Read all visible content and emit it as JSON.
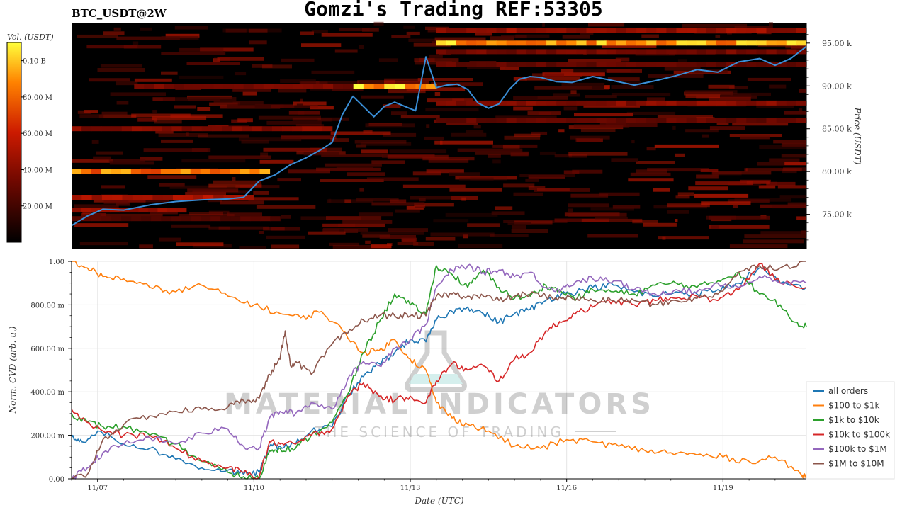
{
  "header": {
    "title": "Gomzi's Trading REF:53305",
    "symbol": "BTC_USDT@2W"
  },
  "colors": {
    "heatmap_low": "#000000",
    "heatmap_mid": "#cc1a00",
    "heatmap_high": "#ffff33",
    "price_line": "#3a8fd8"
  },
  "watermark": {
    "brand": "MATERIAL INDICATORS",
    "tagline": "THE SCIENCE OF TRADING"
  },
  "chart_data": [
    {
      "type": "heatmap",
      "title": "",
      "ylabel": "Price (USDT)",
      "colorbar_label": "Vol. (USDT)",
      "colorbar_ticks": [
        "20.00 M",
        "40.00 M",
        "60.00 M",
        "80.00 M",
        "0.10 B"
      ],
      "colorbar_range": [
        0,
        110000000
      ],
      "ylim": [
        71000,
        97300
      ],
      "ytick_labels": [
        "75.00 k",
        "80.00 k",
        "85.00 k",
        "90.00 k",
        "95.00 k"
      ],
      "ytick_values": [
        75000,
        80000,
        85000,
        90000,
        95000
      ],
      "xlim": [
        0,
        14.1
      ],
      "price_series": {
        "x": [
          0,
          0.3,
          0.6,
          1.0,
          1.5,
          2.0,
          2.5,
          3.0,
          3.3,
          3.6,
          3.9,
          4.2,
          4.5,
          4.8,
          5.0,
          5.2,
          5.4,
          5.6,
          5.8,
          6.0,
          6.2,
          6.4,
          6.6,
          6.8,
          7.0,
          7.2,
          7.4,
          7.6,
          7.8,
          8.0,
          8.2,
          8.4,
          8.6,
          8.8,
          9.0,
          9.3,
          9.6,
          10.0,
          10.4,
          10.8,
          11.2,
          11.6,
          12.0,
          12.4,
          12.8,
          13.2,
          13.5,
          13.8,
          14.1
        ],
        "y": [
          73700,
          74800,
          75600,
          75500,
          76100,
          76500,
          76700,
          76800,
          77000,
          78900,
          79600,
          80800,
          81600,
          82600,
          83400,
          86700,
          88800,
          87600,
          86400,
          87600,
          88100,
          87600,
          87100,
          93400,
          89800,
          90100,
          90200,
          89600,
          88000,
          87400,
          87900,
          89600,
          90800,
          91100,
          91000,
          90500,
          90400,
          91100,
          90600,
          90100,
          90600,
          91200,
          91900,
          91600,
          92800,
          93200,
          92400,
          93200,
          94600
        ]
      },
      "liquidity_bands": [
        {
          "price": 95000,
          "start": 7.0,
          "end": 14.1,
          "volume": 95000000
        },
        {
          "price": 96500,
          "start": 7.0,
          "end": 14.1,
          "volume": 45000000
        },
        {
          "price": 94000,
          "start": 7.0,
          "end": 14.1,
          "volume": 35000000
        },
        {
          "price": 89900,
          "start": 5.4,
          "end": 7.0,
          "volume": 100000000
        },
        {
          "price": 89900,
          "start": 1.2,
          "end": 5.4,
          "volume": 35000000
        },
        {
          "price": 80000,
          "start": 0,
          "end": 3.8,
          "volume": 85000000
        },
        {
          "price": 85000,
          "start": 0,
          "end": 5.0,
          "volume": 40000000
        },
        {
          "price": 88000,
          "start": 7.0,
          "end": 14.1,
          "volume": 40000000
        },
        {
          "price": 86000,
          "start": 7.0,
          "end": 14.1,
          "volume": 30000000
        },
        {
          "price": 77000,
          "start": 0,
          "end": 3.5,
          "volume": 50000000
        },
        {
          "price": 75500,
          "start": 0,
          "end": 2.2,
          "volume": 45000000
        },
        {
          "price": 74500,
          "start": 0,
          "end": 4.0,
          "volume": 25000000
        },
        {
          "price": 92500,
          "start": 7.0,
          "end": 14.1,
          "volume": 30000000
        }
      ]
    },
    {
      "type": "line",
      "title": "",
      "xlabel": "Date (UTC)",
      "ylabel": "Norm. CVD (arb. u.)",
      "ylim": [
        0,
        1
      ],
      "xlim": [
        0,
        14.1
      ],
      "ytick_labels": [
        "0.00",
        "200.00 m",
        "400.00 m",
        "600.00 m",
        "800.00 m",
        "1.00"
      ],
      "ytick_values": [
        0,
        0.2,
        0.4,
        0.6,
        0.8,
        1.0
      ],
      "xtick_labels": [
        "11/07",
        "11/10",
        "11/13",
        "11/16",
        "11/19"
      ],
      "xtick_values": [
        0.5,
        3.5,
        6.5,
        9.5,
        12.5
      ],
      "legend_position": "bottom-right",
      "series": [
        {
          "name": "all orders",
          "color": "#1f77b4",
          "x": [
            0,
            0.2,
            0.5,
            1.0,
            1.5,
            2.0,
            2.5,
            3.0,
            3.3,
            3.6,
            3.8,
            4.0,
            4.3,
            4.6,
            5.0,
            5.3,
            5.6,
            5.9,
            6.2,
            6.5,
            6.8,
            7.0,
            7.3,
            7.6,
            7.9,
            8.2,
            8.5,
            8.8,
            9.1,
            9.4,
            9.7,
            10.0,
            10.4,
            10.8,
            11.2,
            11.6,
            12.0,
            12.4,
            12.8,
            13.2,
            13.6,
            14.1
          ],
          "y": [
            0.19,
            0.17,
            0.22,
            0.16,
            0.14,
            0.09,
            0.05,
            0.04,
            0.02,
            0.03,
            0.15,
            0.15,
            0.16,
            0.22,
            0.24,
            0.38,
            0.47,
            0.53,
            0.58,
            0.64,
            0.63,
            0.73,
            0.77,
            0.79,
            0.76,
            0.72,
            0.76,
            0.78,
            0.82,
            0.85,
            0.86,
            0.88,
            0.89,
            0.86,
            0.84,
            0.86,
            0.85,
            0.87,
            0.9,
            0.97,
            0.9,
            0.88
          ]
        },
        {
          "name": "$100 to $1k",
          "color": "#ff7f0e",
          "x": [
            0,
            0.3,
            0.6,
            1.0,
            1.5,
            2.0,
            2.5,
            3.0,
            3.5,
            4.0,
            4.4,
            4.8,
            5.2,
            5.6,
            5.9,
            6.2,
            6.5,
            6.8,
            7.0,
            7.3,
            7.6,
            8.0,
            8.5,
            9.0,
            9.5,
            10.0,
            10.5,
            11.0,
            11.5,
            12.0,
            12.5,
            13.0,
            13.5,
            14.0,
            14.1
          ],
          "y": [
            1.0,
            0.97,
            0.93,
            0.92,
            0.88,
            0.86,
            0.89,
            0.84,
            0.8,
            0.76,
            0.74,
            0.77,
            0.68,
            0.58,
            0.59,
            0.64,
            0.55,
            0.5,
            0.35,
            0.28,
            0.25,
            0.22,
            0.15,
            0.14,
            0.18,
            0.17,
            0.15,
            0.13,
            0.12,
            0.11,
            0.1,
            0.08,
            0.1,
            0.02,
            0.01
          ]
        },
        {
          "name": "$1k to $10k",
          "color": "#2ca02c",
          "x": [
            0,
            0.3,
            0.6,
            1.0,
            1.5,
            2.0,
            2.5,
            3.0,
            3.3,
            3.6,
            3.8,
            4.0,
            4.3,
            4.6,
            5.0,
            5.3,
            5.6,
            5.9,
            6.2,
            6.5,
            6.8,
            7.0,
            7.3,
            7.6,
            7.9,
            8.2,
            8.5,
            8.8,
            9.1,
            9.4,
            9.7,
            10.0,
            10.4,
            10.8,
            11.2,
            11.6,
            12.0,
            12.4,
            12.8,
            13.2,
            13.6,
            13.9,
            14.1
          ],
          "y": [
            0.3,
            0.26,
            0.24,
            0.24,
            0.2,
            0.16,
            0.08,
            0.03,
            0.01,
            0.0,
            0.13,
            0.14,
            0.14,
            0.2,
            0.26,
            0.39,
            0.58,
            0.72,
            0.85,
            0.8,
            0.76,
            0.98,
            0.94,
            0.88,
            0.96,
            0.88,
            0.83,
            0.84,
            0.89,
            0.86,
            0.83,
            0.87,
            0.86,
            0.85,
            0.89,
            0.9,
            0.88,
            0.91,
            0.95,
            0.85,
            0.8,
            0.72,
            0.7
          ]
        },
        {
          "name": "$10k to $100k",
          "color": "#d62728",
          "x": [
            0,
            0.3,
            0.6,
            1.0,
            1.5,
            2.0,
            2.5,
            3.0,
            3.3,
            3.6,
            3.8,
            4.0,
            4.3,
            4.6,
            5.0,
            5.3,
            5.6,
            5.9,
            6.2,
            6.5,
            6.8,
            7.0,
            7.3,
            7.6,
            7.9,
            8.2,
            8.5,
            8.8,
            9.1,
            9.4,
            9.7,
            10.0,
            10.4,
            10.8,
            11.2,
            11.6,
            12.0,
            12.4,
            12.8,
            13.2,
            13.6,
            14.1
          ],
          "y": [
            0.32,
            0.26,
            0.22,
            0.2,
            0.2,
            0.14,
            0.08,
            0.05,
            0.03,
            0.01,
            0.17,
            0.16,
            0.16,
            0.2,
            0.23,
            0.38,
            0.44,
            0.38,
            0.36,
            0.38,
            0.35,
            0.45,
            0.53,
            0.5,
            0.52,
            0.45,
            0.55,
            0.58,
            0.68,
            0.72,
            0.77,
            0.79,
            0.82,
            0.8,
            0.82,
            0.83,
            0.84,
            0.82,
            0.87,
            0.99,
            0.9,
            0.88
          ]
        },
        {
          "name": "$100k to $1M",
          "color": "#9467bd",
          "x": [
            0,
            0.3,
            0.6,
            1.0,
            1.5,
            2.0,
            2.5,
            3.0,
            3.3,
            3.6,
            3.8,
            4.0,
            4.3,
            4.6,
            5.0,
            5.3,
            5.6,
            5.9,
            6.2,
            6.5,
            6.8,
            7.0,
            7.3,
            7.6,
            7.9,
            8.2,
            8.5,
            8.8,
            9.1,
            9.4,
            9.7,
            10.0,
            10.4,
            10.8,
            11.2,
            11.6,
            12.0,
            12.4,
            12.8,
            13.2,
            13.6,
            14.1
          ],
          "y": [
            0.0,
            0.05,
            0.12,
            0.16,
            0.19,
            0.16,
            0.21,
            0.23,
            0.15,
            0.14,
            0.28,
            0.31,
            0.3,
            0.35,
            0.32,
            0.46,
            0.54,
            0.52,
            0.6,
            0.64,
            0.71,
            0.88,
            0.96,
            0.98,
            0.95,
            0.96,
            0.93,
            0.95,
            0.88,
            0.87,
            0.91,
            0.92,
            0.91,
            0.87,
            0.85,
            0.87,
            0.86,
            0.9,
            0.88,
            0.93,
            0.9,
            0.9
          ]
        },
        {
          "name": "$1M to $10M",
          "color": "#8c564b",
          "x": [
            0,
            0.3,
            0.6,
            1.0,
            1.5,
            2.0,
            2.5,
            3.0,
            3.3,
            3.6,
            3.8,
            4.0,
            4.1,
            4.2,
            4.3,
            4.6,
            5.0,
            5.3,
            5.6,
            5.9,
            6.2,
            6.5,
            6.8,
            7.0,
            7.3,
            7.6,
            7.9,
            8.2,
            8.5,
            8.8,
            9.1,
            9.4,
            9.7,
            10.0,
            10.4,
            10.8,
            11.2,
            11.6,
            12.0,
            12.4,
            12.8,
            13.2,
            13.6,
            14.1
          ],
          "y": [
            0.0,
            0.02,
            0.18,
            0.25,
            0.29,
            0.31,
            0.32,
            0.33,
            0.36,
            0.37,
            0.48,
            0.55,
            0.68,
            0.52,
            0.54,
            0.48,
            0.62,
            0.67,
            0.73,
            0.75,
            0.75,
            0.75,
            0.75,
            0.84,
            0.85,
            0.84,
            0.84,
            0.82,
            0.84,
            0.85,
            0.84,
            0.83,
            0.83,
            0.82,
            0.82,
            0.82,
            0.8,
            0.82,
            0.83,
            0.85,
            0.95,
            0.98,
            0.97,
            1.0
          ]
        }
      ]
    }
  ]
}
